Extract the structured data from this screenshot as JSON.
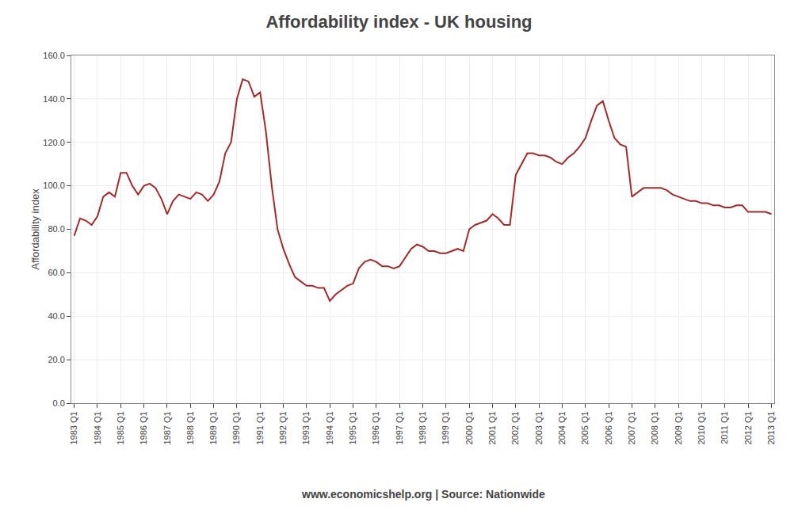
{
  "chart_data": {
    "type": "line",
    "title": "Affordability index - UK housing",
    "ylabel": "Affordability index",
    "annotations": [
      "www.economicshelp.org | Source: Nationwide"
    ],
    "color": "#a52a2a",
    "grid": true,
    "ylim": [
      0.0,
      160.0
    ],
    "yticks": [
      {
        "value": 0.0,
        "label": "0.0"
      },
      {
        "value": 20.0,
        "label": "20.0"
      },
      {
        "value": 40.0,
        "label": "40.0"
      },
      {
        "value": 60.0,
        "label": "60.0"
      },
      {
        "value": 80.0,
        "label": "80.0"
      },
      {
        "value": 100.0,
        "label": "100.0"
      },
      {
        "value": 120.0,
        "label": "120.0"
      },
      {
        "value": 140.0,
        "label": "140.0"
      },
      {
        "value": 160.0,
        "label": "160.0"
      }
    ],
    "categories": [
      "1983 Q1",
      null,
      null,
      null,
      "1984 Q1",
      null,
      null,
      null,
      "1985 Q1",
      null,
      null,
      null,
      "1986 Q1",
      null,
      null,
      null,
      "1987 Q1",
      null,
      null,
      null,
      "1988 Q1",
      null,
      null,
      null,
      "1989 Q1",
      null,
      null,
      null,
      "1990 Q1",
      null,
      null,
      null,
      "1991 Q1",
      null,
      null,
      null,
      "1992 Q1",
      null,
      null,
      null,
      "1993 Q1",
      null,
      null,
      null,
      "1994 Q1",
      null,
      null,
      null,
      "1995 Q1",
      null,
      null,
      null,
      "1996 Q1",
      null,
      null,
      null,
      "1997 Q1",
      null,
      null,
      null,
      "1998 Q1",
      null,
      null,
      null,
      "1999 Q1",
      null,
      null,
      null,
      "2000 Q1",
      null,
      null,
      null,
      "2001 Q1",
      null,
      null,
      null,
      "2002 Q1",
      null,
      null,
      null,
      "2003 Q1",
      null,
      null,
      null,
      "2004 Q1",
      null,
      null,
      null,
      "2005 Q1",
      null,
      null,
      null,
      "2006 Q1",
      null,
      null,
      null,
      "2007 Q1",
      null,
      null,
      null,
      "2008 Q1",
      null,
      null,
      null,
      "2009 Q1",
      null,
      null,
      null,
      "2010 Q1",
      null,
      null,
      null,
      "2011 Q1",
      null,
      null,
      null,
      "2012 Q1",
      null,
      null,
      null,
      "2013 Q1"
    ],
    "values": [
      77,
      85,
      84,
      82,
      86,
      95,
      97,
      95,
      106,
      106,
      100,
      96,
      100,
      101,
      99,
      94,
      87,
      93,
      96,
      95,
      94,
      97,
      96,
      93,
      96,
      102,
      115,
      120,
      140,
      149,
      148,
      141,
      143,
      125,
      100,
      80,
      71,
      64,
      58,
      56,
      54,
      54,
      53,
      53,
      47,
      50,
      52,
      54,
      55,
      62,
      65,
      66,
      65,
      63,
      63,
      62,
      63,
      67,
      71,
      73,
      72,
      70,
      70,
      69,
      69,
      70,
      71,
      70,
      80,
      82,
      83,
      84,
      87,
      85,
      82,
      82,
      105,
      110,
      115,
      115,
      114,
      114,
      113,
      111,
      110,
      113,
      115,
      118,
      122,
      130,
      137,
      139,
      130,
      122,
      119,
      118,
      95,
      97,
      99,
      99,
      99,
      99,
      98,
      96,
      95,
      94,
      93,
      93,
      92,
      92,
      91,
      91,
      90,
      90,
      91,
      91,
      88,
      88,
      88,
      88,
      87
    ]
  }
}
